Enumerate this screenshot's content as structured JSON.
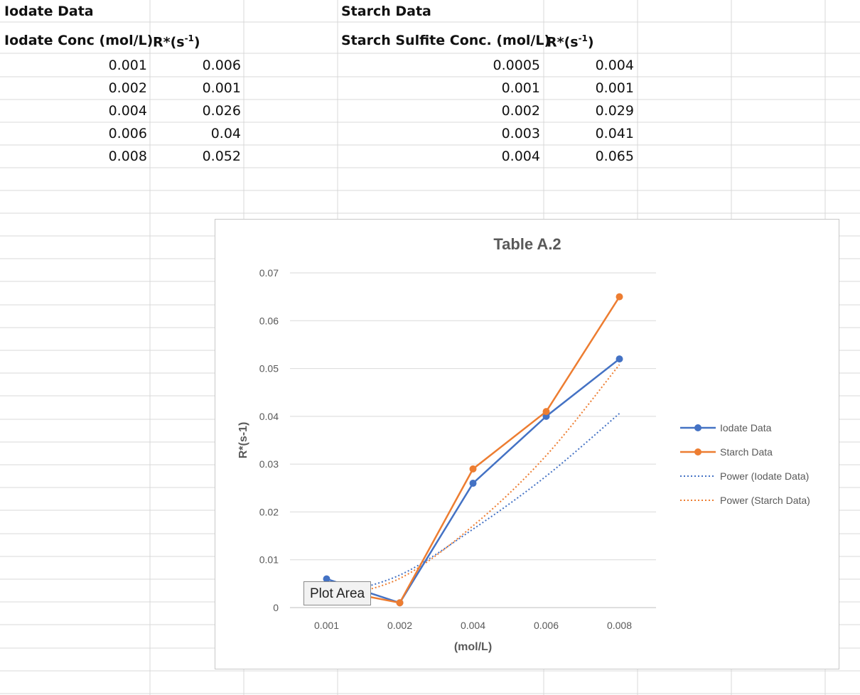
{
  "iodate": {
    "title": "Iodate Data",
    "col1_header": "Iodate Conc (mol/L)",
    "col2_header_base": "R*(s",
    "col2_header_sup": "-1",
    "col2_header_close": ")",
    "rows": [
      {
        "conc": "0.001",
        "rate": "0.006"
      },
      {
        "conc": "0.002",
        "rate": "0.001"
      },
      {
        "conc": "0.004",
        "rate": "0.026"
      },
      {
        "conc": "0.006",
        "rate": "0.04"
      },
      {
        "conc": "0.008",
        "rate": "0.052"
      }
    ]
  },
  "starch": {
    "title": "Starch Data",
    "col1_header": "Starch Sulfite Conc. (mol/L)",
    "col2_header_base": "R*(s",
    "col2_header_sup": "-1",
    "col2_header_close": ")",
    "rows": [
      {
        "conc": "0.0005",
        "rate": "0.004"
      },
      {
        "conc": "0.001",
        "rate": "0.001"
      },
      {
        "conc": "0.002",
        "rate": "0.029"
      },
      {
        "conc": "0.003",
        "rate": "0.041"
      },
      {
        "conc": "0.004",
        "rate": "0.065"
      }
    ]
  },
  "tooltip": "Plot Area",
  "chart_data": {
    "type": "line",
    "title": "Table A.2",
    "xlabel": "(mol/L)",
    "ylabel": "R*(s-1)",
    "categories": [
      "0.001",
      "0.002",
      "0.004",
      "0.006",
      "0.008"
    ],
    "ylim": [
      0,
      0.07
    ],
    "yticks": [
      "0",
      "0.01",
      "0.02",
      "0.03",
      "0.04",
      "0.05",
      "0.06",
      "0.07"
    ],
    "grid": true,
    "legend_position": "right",
    "series": [
      {
        "name": "Iodate Data",
        "values": [
          0.006,
          0.001,
          0.026,
          0.04,
          0.052
        ],
        "color": "#4472C4",
        "style": "solid-markers"
      },
      {
        "name": "Starch Data",
        "values": [
          0.004,
          0.001,
          0.029,
          0.041,
          0.065
        ],
        "color": "#ED7D31",
        "style": "solid-markers"
      },
      {
        "name": "Power (Iodate Data)",
        "values": [
          0.0023,
          0.0068,
          0.0164,
          0.0275,
          0.0406
        ],
        "color": "#4472C4",
        "style": "dotted"
      },
      {
        "name": "Power (Starch Data)",
        "values": [
          0.0018,
          0.0061,
          0.0171,
          0.0318,
          0.0508
        ],
        "color": "#ED7D31",
        "style": "dotted"
      }
    ]
  }
}
